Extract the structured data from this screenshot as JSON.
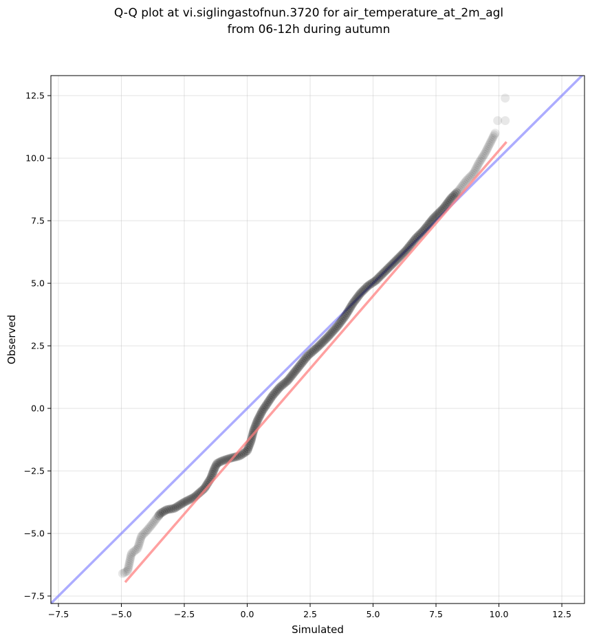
{
  "chart_data": {
    "type": "scatter",
    "title_line1": "Q-Q plot at vi.siglingastofnun.3720 for air_temperature_at_2m_agl",
    "title_line2": "from 06-12h during autumn",
    "xlabel": "Simulated",
    "ylabel": "Observed",
    "xlim": [
      -7.8,
      13.4
    ],
    "ylim": [
      -7.8,
      13.3
    ],
    "x_ticks": [
      -7.5,
      -5.0,
      -2.5,
      0.0,
      2.5,
      5.0,
      7.5,
      10.0,
      12.5
    ],
    "y_ticks": [
      -7.5,
      -5.0,
      -2.5,
      0.0,
      2.5,
      5.0,
      7.5,
      10.0,
      12.5
    ],
    "x_tick_labels": [
      "−7.5",
      "−5.0",
      "−2.5",
      "0.0",
      "2.5",
      "5.0",
      "7.5",
      "10.0",
      "12.5"
    ],
    "y_tick_labels": [
      "−7.5",
      "−5.0",
      "−2.5",
      "0.0",
      "2.5",
      "5.0",
      "7.5",
      "10.0",
      "12.5"
    ],
    "grid": true,
    "point_color": "#000000",
    "identity_line_color": "#7f7fff",
    "fit_line_color": "#ff8080",
    "fit_line": {
      "x": [
        -4.85,
        10.3
      ],
      "y": [
        -6.95,
        10.65
      ]
    },
    "quantile_curve": {
      "x": [
        -4.95,
        -4.75,
        -4.6,
        -4.35,
        -4.2,
        -4.0,
        -3.75,
        -3.6,
        -3.45,
        -3.2,
        -2.9,
        -2.5,
        -2.1,
        -1.7,
        -1.45,
        -1.3,
        -1.2,
        -1.1,
        -1.0,
        -0.7,
        -0.3,
        0.0,
        0.15,
        0.25,
        0.4,
        0.6,
        0.8,
        1.0,
        1.3,
        1.6,
        2.0,
        2.4,
        2.8,
        3.2,
        3.6,
        3.9,
        4.2,
        4.5,
        4.8,
        5.1,
        5.5,
        5.9,
        6.3,
        6.7,
        7.0,
        7.4,
        7.8,
        8.1,
        8.4,
        8.7,
        9.0,
        9.2,
        9.45,
        9.65,
        9.85
      ],
      "y": [
        -6.6,
        -6.5,
        -5.8,
        -5.6,
        -5.1,
        -4.9,
        -4.6,
        -4.4,
        -4.2,
        -4.05,
        -4.0,
        -3.75,
        -3.55,
        -3.2,
        -2.8,
        -2.4,
        -2.2,
        -2.15,
        -2.1,
        -2.0,
        -1.9,
        -1.7,
        -1.3,
        -0.9,
        -0.5,
        -0.1,
        0.2,
        0.5,
        0.85,
        1.1,
        1.6,
        2.1,
        2.45,
        2.85,
        3.3,
        3.7,
        4.2,
        4.6,
        4.9,
        5.1,
        5.5,
        5.9,
        6.3,
        6.8,
        7.1,
        7.6,
        8.0,
        8.4,
        8.7,
        9.1,
        9.4,
        9.8,
        10.2,
        10.6,
        11.0
      ]
    },
    "extra_points": [
      {
        "x": 9.95,
        "y": 11.5
      },
      {
        "x": 10.25,
        "y": 11.5
      },
      {
        "x": 10.25,
        "y": 12.4
      }
    ]
  }
}
